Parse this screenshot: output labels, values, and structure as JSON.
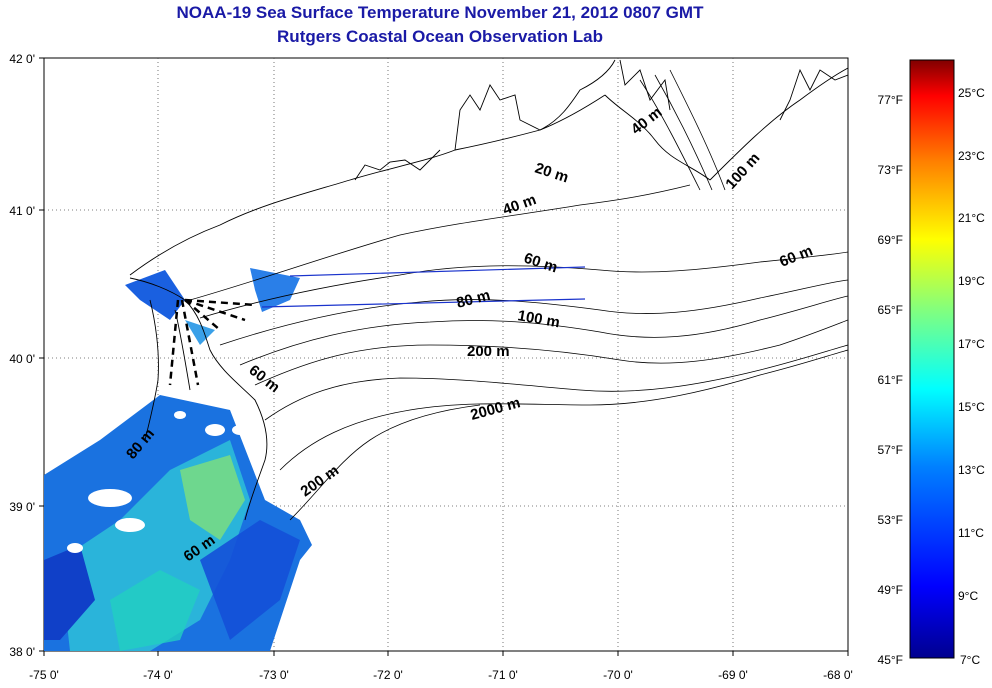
{
  "title": "NOAA-19 Sea Surface Temperature November 21, 2012 0807 GMT",
  "subtitle": "Rutgers Coastal Ocean Observation Lab",
  "axes": {
    "x_ticks": [
      "-75 0'",
      "-74 0'",
      "-73 0'",
      "-72 0'",
      "-71 0'",
      "-70 0'",
      "-69 0'",
      "-68 0'"
    ],
    "y_ticks": [
      "42 0'",
      "41 0'",
      "40 0'",
      "39 0'",
      "38 0'"
    ]
  },
  "depth_labels": [
    "20 m",
    "40 m",
    "40 m",
    "60 m",
    "60 m",
    "80 m",
    "100 m",
    "100 m",
    "200 m",
    "2000 m",
    "60 m",
    "200 m",
    "60 m",
    "80 m"
  ],
  "colorbar": {
    "fahrenheit_labels": [
      "77°F",
      "73°F",
      "69°F",
      "65°F",
      "61°F",
      "57°F",
      "53°F",
      "49°F",
      "45°F"
    ],
    "celsius_labels": [
      "25°C",
      "23°C",
      "21°C",
      "19°C",
      "17°C",
      "15°C",
      "13°C",
      "11°C",
      "9°C",
      "7°C"
    ],
    "range_c": [
      7,
      26
    ],
    "colors": [
      "#00008f",
      "#0000ff",
      "#0080ff",
      "#00ffff",
      "#80ff80",
      "#ffff00",
      "#ff8000",
      "#ff0000",
      "#800000"
    ]
  },
  "colors": {
    "title": "#1a1aa6",
    "land": "#ffffff",
    "contour": "#000000",
    "transect": "#1a33cc"
  }
}
